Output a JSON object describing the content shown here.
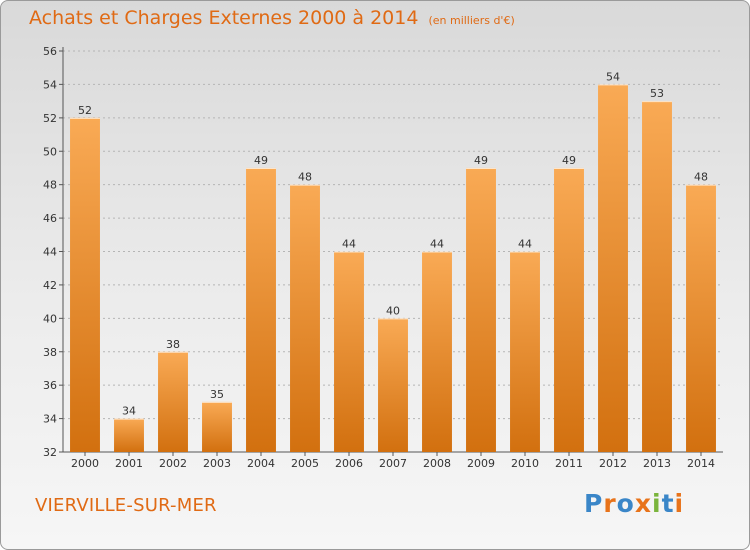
{
  "title": "Achats et Charges Externes 2000 à 2014",
  "unit_note": "(en milliers d'€)",
  "commune": "VIERVILLE-SUR-MER",
  "logo": {
    "text": "Proxiti",
    "letter_colors": [
      "#3a86c8",
      "#e8731a",
      "#3a86c8",
      "#e8731a",
      "#7ab43c",
      "#3a86c8",
      "#e8731a"
    ]
  },
  "colors": {
    "title": "#e06a14",
    "bar_top": "#f9aa55",
    "bar_bottom": "#d2700f",
    "label": "#333333"
  },
  "chart_data": {
    "type": "bar",
    "categories": [
      "2000",
      "2001",
      "2002",
      "2003",
      "2004",
      "2005",
      "2006",
      "2007",
      "2008",
      "2009",
      "2010",
      "2011",
      "2012",
      "2013",
      "2014"
    ],
    "values": [
      52,
      34,
      38,
      35,
      49,
      48,
      44,
      40,
      44,
      49,
      44,
      49,
      54,
      53,
      48
    ],
    "ylim": [
      32,
      56
    ],
    "yticks": [
      32,
      34,
      36,
      38,
      40,
      42,
      44,
      46,
      48,
      50,
      52,
      54,
      56
    ],
    "grid": "horizontal dashed",
    "data_labels": true
  }
}
